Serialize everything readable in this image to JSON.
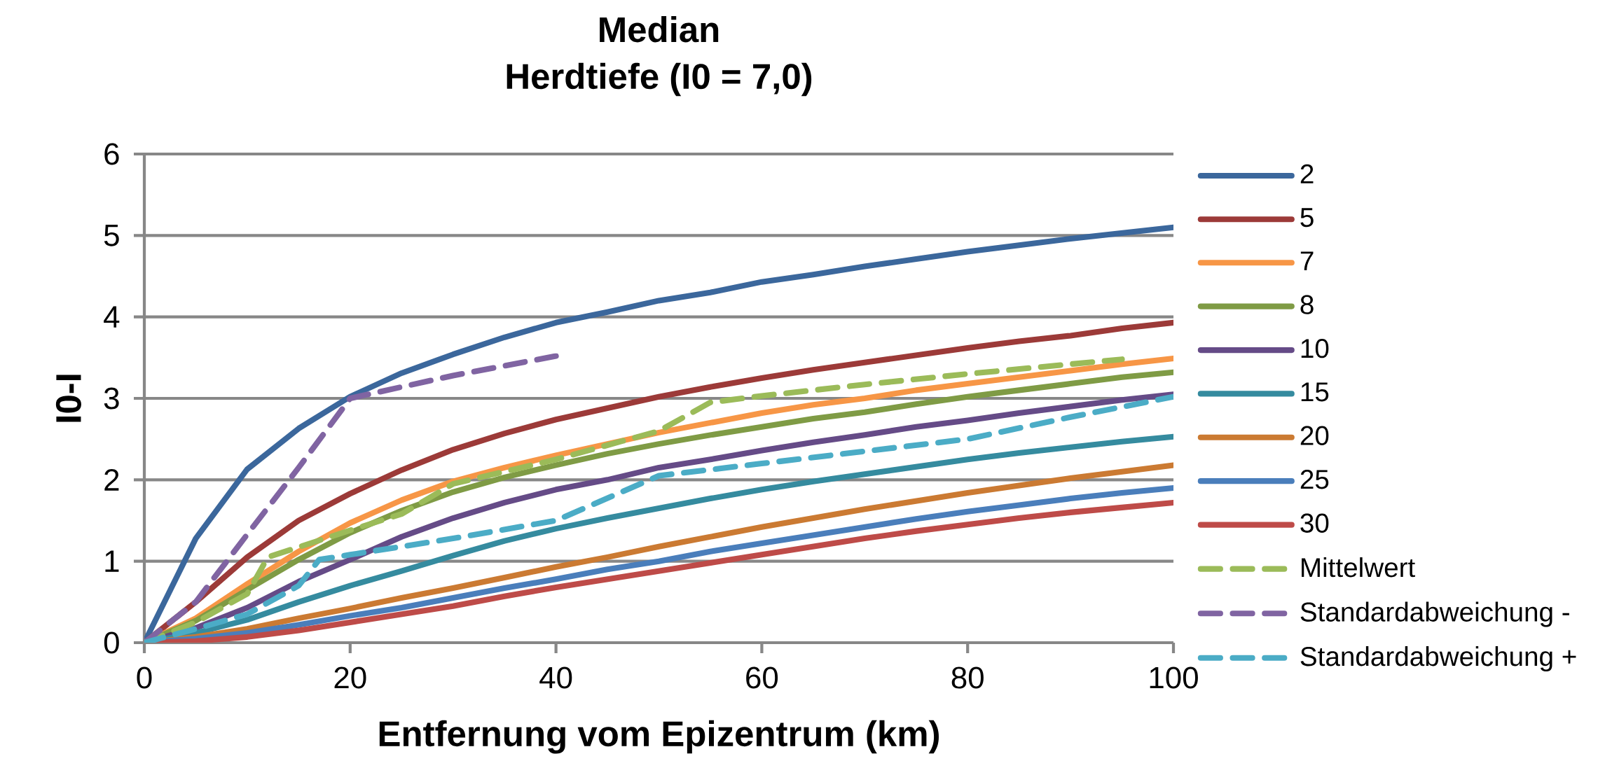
{
  "chart_data": {
    "type": "line",
    "title": "Median",
    "subtitle": "Herdtiefe (I0 = 7,0)",
    "xlabel": "Entfernung vom Epizentrum (km)",
    "ylabel": "I0-I",
    "x": [
      0,
      5,
      10,
      15,
      20,
      25,
      30,
      35,
      40,
      45,
      50,
      55,
      60,
      65,
      70,
      75,
      80,
      85,
      90,
      95,
      100
    ],
    "xlim": [
      0,
      100
    ],
    "xticks": [
      0,
      20,
      40,
      60,
      80,
      100
    ],
    "ylim": [
      0,
      6
    ],
    "yticks": [
      0,
      1,
      2,
      3,
      4,
      5,
      6
    ],
    "grid": "y",
    "legend": "right",
    "series": [
      {
        "name": "2",
        "color": "#3b679c",
        "values": [
          0,
          1.28,
          2.13,
          2.63,
          3.02,
          3.31,
          3.54,
          3.75,
          3.93,
          4.06,
          4.2,
          4.3,
          4.43,
          4.52,
          4.62,
          4.71,
          4.8,
          4.88,
          4.96,
          5.03,
          5.1
        ]
      },
      {
        "name": "5",
        "color": "#9c3a38",
        "values": [
          0,
          0.5,
          1.05,
          1.5,
          1.83,
          2.12,
          2.37,
          2.57,
          2.74,
          2.88,
          3.02,
          3.14,
          3.25,
          3.35,
          3.44,
          3.53,
          3.62,
          3.7,
          3.77,
          3.86,
          3.93
        ]
      },
      {
        "name": "7",
        "color": "#f79646",
        "values": [
          0,
          0.3,
          0.72,
          1.12,
          1.47,
          1.75,
          1.98,
          2.15,
          2.3,
          2.44,
          2.58,
          2.7,
          2.82,
          2.92,
          3.0,
          3.1,
          3.18,
          3.26,
          3.34,
          3.42,
          3.49
        ]
      },
      {
        "name": "8",
        "color": "#7f9b45",
        "values": [
          0,
          0.27,
          0.65,
          1.02,
          1.35,
          1.62,
          1.85,
          2.03,
          2.18,
          2.32,
          2.44,
          2.55,
          2.65,
          2.75,
          2.83,
          2.93,
          3.02,
          3.1,
          3.18,
          3.26,
          3.32
        ]
      },
      {
        "name": "10",
        "color": "#654b87",
        "values": [
          0,
          0.18,
          0.43,
          0.75,
          1.02,
          1.3,
          1.53,
          1.72,
          1.88,
          2.0,
          2.15,
          2.25,
          2.36,
          2.46,
          2.55,
          2.65,
          2.73,
          2.82,
          2.9,
          2.98,
          3.05
        ]
      },
      {
        "name": "15",
        "color": "#358b9f",
        "values": [
          0,
          0.12,
          0.28,
          0.5,
          0.7,
          0.88,
          1.07,
          1.25,
          1.4,
          1.53,
          1.65,
          1.77,
          1.88,
          1.98,
          2.07,
          2.16,
          2.25,
          2.33,
          2.4,
          2.47,
          2.53
        ]
      },
      {
        "name": "20",
        "color": "#cb7a32",
        "values": [
          0,
          0.07,
          0.17,
          0.3,
          0.42,
          0.55,
          0.67,
          0.8,
          0.93,
          1.05,
          1.18,
          1.3,
          1.42,
          1.53,
          1.64,
          1.74,
          1.84,
          1.93,
          2.02,
          2.1,
          2.18
        ]
      },
      {
        "name": "25",
        "color": "#4a7ebb",
        "values": [
          0,
          0.05,
          0.12,
          0.22,
          0.33,
          0.43,
          0.55,
          0.67,
          0.78,
          0.9,
          1.0,
          1.12,
          1.22,
          1.32,
          1.42,
          1.52,
          1.61,
          1.69,
          1.77,
          1.84,
          1.9
        ]
      },
      {
        "name": "30",
        "color": "#be4b48",
        "values": [
          0,
          0.02,
          0.07,
          0.15,
          0.25,
          0.35,
          0.45,
          0.57,
          0.68,
          0.78,
          0.88,
          0.98,
          1.08,
          1.18,
          1.28,
          1.37,
          1.45,
          1.53,
          1.6,
          1.66,
          1.72
        ]
      },
      {
        "name": "Mittelwert",
        "color": "#9bbb59",
        "line_style": "dashed",
        "x": [
          0,
          5,
          10,
          12,
          20,
          25,
          28,
          30,
          40,
          50,
          55,
          60,
          70,
          80,
          90,
          95
        ],
        "values": [
          0,
          0.25,
          0.6,
          1.05,
          1.38,
          1.58,
          1.8,
          1.95,
          2.25,
          2.6,
          2.95,
          3.03,
          3.17,
          3.3,
          3.42,
          3.48
        ]
      },
      {
        "name": "Standardabweichung -",
        "color": "#8064a2",
        "line_style": "dashed",
        "x": [
          0,
          5,
          10,
          15,
          20,
          30,
          40
        ],
        "values": [
          0,
          0.5,
          1.33,
          2.15,
          3.0,
          3.28,
          3.52
        ]
      },
      {
        "name": "Standardabweichung +",
        "color": "#4bacc6",
        "line_style": "dashed",
        "x": [
          0,
          5,
          10,
          15,
          17,
          20,
          30,
          40,
          50,
          60,
          70,
          80,
          90,
          100
        ],
        "values": [
          0,
          0.17,
          0.35,
          0.7,
          1.02,
          1.08,
          1.28,
          1.5,
          2.05,
          2.2,
          2.35,
          2.5,
          2.77,
          3.02
        ]
      }
    ]
  }
}
